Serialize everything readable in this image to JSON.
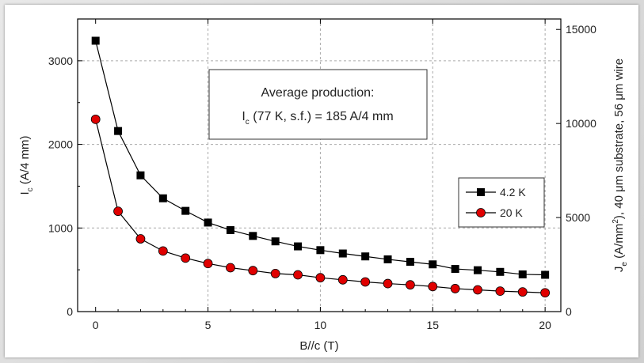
{
  "chart_data": {
    "type": "line",
    "x": [
      0,
      1,
      2,
      3,
      4,
      5,
      6,
      7,
      8,
      9,
      10,
      11,
      12,
      13,
      14,
      15,
      16,
      17,
      18,
      19,
      20
    ],
    "series": [
      {
        "name": "4.2 K",
        "marker": "square",
        "color": "#000000",
        "values": [
          3240,
          2160,
          1630,
          1355,
          1205,
          1065,
          975,
          905,
          840,
          780,
          735,
          695,
          660,
          625,
          595,
          565,
          510,
          495,
          475,
          445,
          440
        ]
      },
      {
        "name": "20 K",
        "marker": "circle",
        "color": "#e00000",
        "values": [
          2300,
          1200,
          870,
          725,
          640,
          575,
          525,
          490,
          455,
          440,
          405,
          380,
          355,
          335,
          320,
          300,
          275,
          260,
          245,
          235,
          225
        ]
      }
    ],
    "xlabel": "B//c (T)",
    "ylabel_main": "I",
    "ylabel_sub": "c",
    "ylabel_rest": " (A/4 mm)",
    "y2label_main": "J",
    "y2label_sub": "e",
    "y2label_rest_a": " (A/mm",
    "y2label_sup": "2",
    "y2label_rest_b": "), 40 μm substrate, 56 μm wire",
    "xlim": [
      -0.8,
      20.7
    ],
    "ylim": [
      0,
      3500
    ],
    "y2lim": [
      0,
      15556
    ],
    "xticks": [
      "0",
      "5",
      "10",
      "15",
      "20"
    ],
    "yticks": [
      "0",
      "1000",
      "2000",
      "3000"
    ],
    "y2ticks": [
      "0",
      "5000",
      "10000",
      "15000"
    ],
    "grid": true,
    "legend_position": "right",
    "annotation": {
      "line1": "Average production:",
      "line2_main": "I",
      "line2_sub": "c",
      "line2_rest": " (77 K, s.f.) = 185 A/4 mm"
    }
  }
}
